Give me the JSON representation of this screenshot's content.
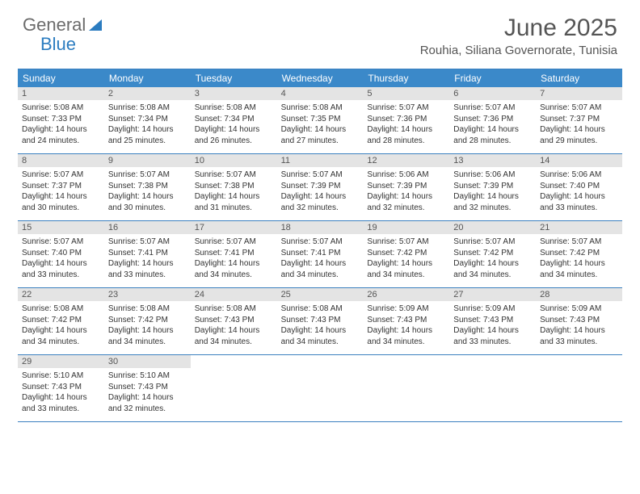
{
  "logo": {
    "text1": "General",
    "text2": "Blue"
  },
  "title": "June 2025",
  "location": "Rouhia, Siliana Governorate, Tunisia",
  "colors": {
    "header_bg": "#3b89c9",
    "border": "#3a7fbf",
    "daynum_bg": "#e4e4e4",
    "text": "#333333",
    "logo_gray": "#6b6b6b",
    "logo_blue": "#2b7cc0"
  },
  "weekdays": [
    "Sunday",
    "Monday",
    "Tuesday",
    "Wednesday",
    "Thursday",
    "Friday",
    "Saturday"
  ],
  "days": [
    {
      "n": "1",
      "sr": "5:08 AM",
      "ss": "7:33 PM",
      "dl": "14 hours and 24 minutes."
    },
    {
      "n": "2",
      "sr": "5:08 AM",
      "ss": "7:34 PM",
      "dl": "14 hours and 25 minutes."
    },
    {
      "n": "3",
      "sr": "5:08 AM",
      "ss": "7:34 PM",
      "dl": "14 hours and 26 minutes."
    },
    {
      "n": "4",
      "sr": "5:08 AM",
      "ss": "7:35 PM",
      "dl": "14 hours and 27 minutes."
    },
    {
      "n": "5",
      "sr": "5:07 AM",
      "ss": "7:36 PM",
      "dl": "14 hours and 28 minutes."
    },
    {
      "n": "6",
      "sr": "5:07 AM",
      "ss": "7:36 PM",
      "dl": "14 hours and 28 minutes."
    },
    {
      "n": "7",
      "sr": "5:07 AM",
      "ss": "7:37 PM",
      "dl": "14 hours and 29 minutes."
    },
    {
      "n": "8",
      "sr": "5:07 AM",
      "ss": "7:37 PM",
      "dl": "14 hours and 30 minutes."
    },
    {
      "n": "9",
      "sr": "5:07 AM",
      "ss": "7:38 PM",
      "dl": "14 hours and 30 minutes."
    },
    {
      "n": "10",
      "sr": "5:07 AM",
      "ss": "7:38 PM",
      "dl": "14 hours and 31 minutes."
    },
    {
      "n": "11",
      "sr": "5:07 AM",
      "ss": "7:39 PM",
      "dl": "14 hours and 32 minutes."
    },
    {
      "n": "12",
      "sr": "5:06 AM",
      "ss": "7:39 PM",
      "dl": "14 hours and 32 minutes."
    },
    {
      "n": "13",
      "sr": "5:06 AM",
      "ss": "7:39 PM",
      "dl": "14 hours and 32 minutes."
    },
    {
      "n": "14",
      "sr": "5:06 AM",
      "ss": "7:40 PM",
      "dl": "14 hours and 33 minutes."
    },
    {
      "n": "15",
      "sr": "5:07 AM",
      "ss": "7:40 PM",
      "dl": "14 hours and 33 minutes."
    },
    {
      "n": "16",
      "sr": "5:07 AM",
      "ss": "7:41 PM",
      "dl": "14 hours and 33 minutes."
    },
    {
      "n": "17",
      "sr": "5:07 AM",
      "ss": "7:41 PM",
      "dl": "14 hours and 34 minutes."
    },
    {
      "n": "18",
      "sr": "5:07 AM",
      "ss": "7:41 PM",
      "dl": "14 hours and 34 minutes."
    },
    {
      "n": "19",
      "sr": "5:07 AM",
      "ss": "7:42 PM",
      "dl": "14 hours and 34 minutes."
    },
    {
      "n": "20",
      "sr": "5:07 AM",
      "ss": "7:42 PM",
      "dl": "14 hours and 34 minutes."
    },
    {
      "n": "21",
      "sr": "5:07 AM",
      "ss": "7:42 PM",
      "dl": "14 hours and 34 minutes."
    },
    {
      "n": "22",
      "sr": "5:08 AM",
      "ss": "7:42 PM",
      "dl": "14 hours and 34 minutes."
    },
    {
      "n": "23",
      "sr": "5:08 AM",
      "ss": "7:42 PM",
      "dl": "14 hours and 34 minutes."
    },
    {
      "n": "24",
      "sr": "5:08 AM",
      "ss": "7:43 PM",
      "dl": "14 hours and 34 minutes."
    },
    {
      "n": "25",
      "sr": "5:08 AM",
      "ss": "7:43 PM",
      "dl": "14 hours and 34 minutes."
    },
    {
      "n": "26",
      "sr": "5:09 AM",
      "ss": "7:43 PM",
      "dl": "14 hours and 34 minutes."
    },
    {
      "n": "27",
      "sr": "5:09 AM",
      "ss": "7:43 PM",
      "dl": "14 hours and 33 minutes."
    },
    {
      "n": "28",
      "sr": "5:09 AM",
      "ss": "7:43 PM",
      "dl": "14 hours and 33 minutes."
    },
    {
      "n": "29",
      "sr": "5:10 AM",
      "ss": "7:43 PM",
      "dl": "14 hours and 33 minutes."
    },
    {
      "n": "30",
      "sr": "5:10 AM",
      "ss": "7:43 PM",
      "dl": "14 hours and 32 minutes."
    }
  ],
  "labels": {
    "sunrise": "Sunrise:",
    "sunset": "Sunset:",
    "daylight": "Daylight:"
  }
}
